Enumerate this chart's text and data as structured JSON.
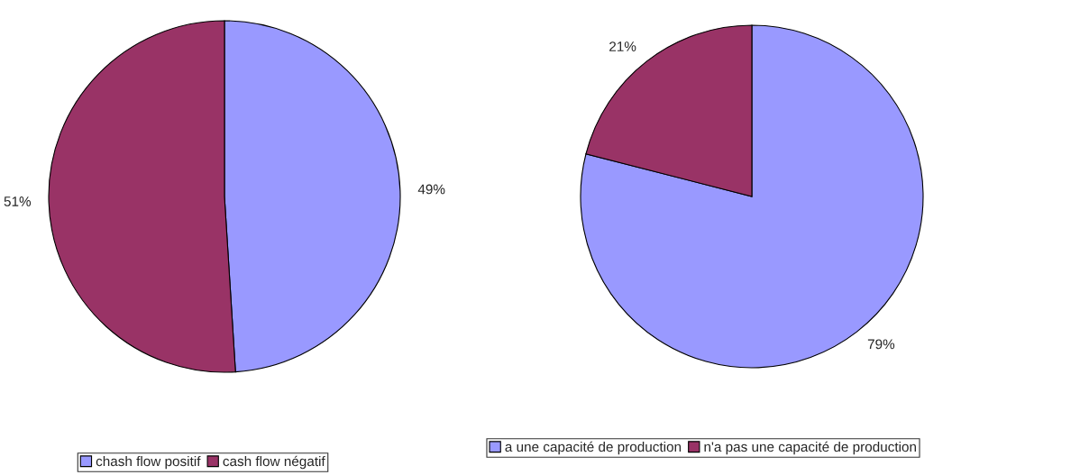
{
  "chart_data": [
    {
      "type": "pie",
      "categories": [
        "chash flow positif",
        "cash flow négatif"
      ],
      "values": [
        49,
        51
      ],
      "colors": [
        "#9999ff",
        "#993366"
      ],
      "value_labels": [
        "49%",
        "51%"
      ],
      "legend": "bottom"
    },
    {
      "type": "pie",
      "categories": [
        "a une capacité de production",
        "n'a pas une capacité de production"
      ],
      "values": [
        79,
        21
      ],
      "colors": [
        "#9999ff",
        "#993366"
      ],
      "value_labels": [
        "79%",
        "21%"
      ],
      "legend": "bottom"
    }
  ]
}
